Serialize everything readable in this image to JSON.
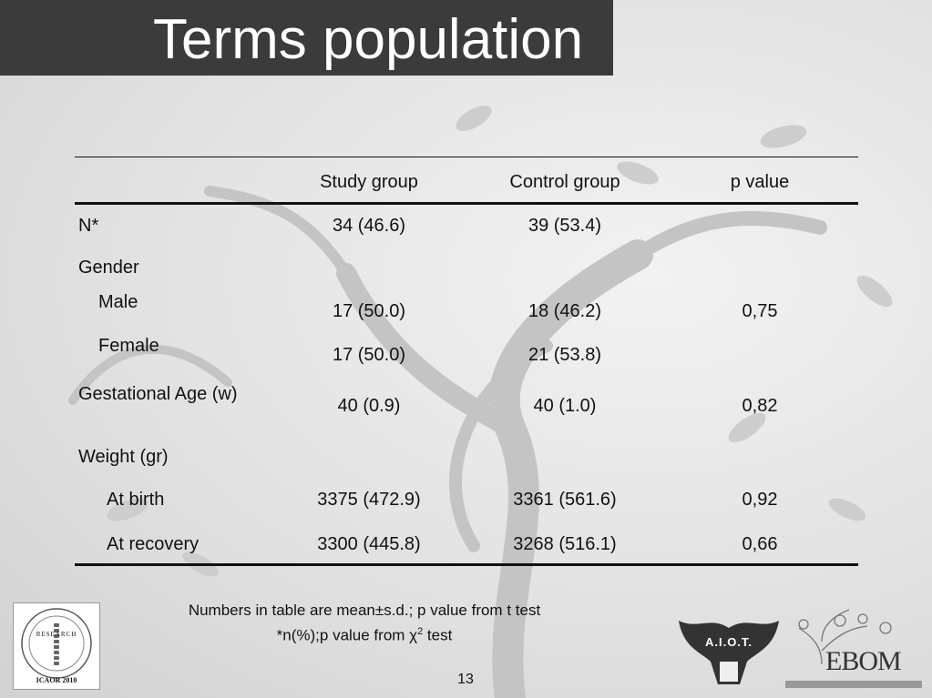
{
  "title": "Terms population",
  "table": {
    "headers": {
      "study": "Study group",
      "control": "Control group",
      "p": "p value"
    },
    "n": {
      "label": "N*",
      "study": "34 (46.6)",
      "control": "39 (53.4)"
    },
    "gender": {
      "label": "Gender",
      "male": {
        "label": "Male",
        "study": "17 (50.0)",
        "control": "18 (46.2)"
      },
      "female": {
        "label": "Female",
        "study": "17 (50.0)",
        "control": "21 (53.8)"
      },
      "p": "0,75"
    },
    "gestational": {
      "label": "Gestational Age (w)",
      "study": "40 (0.9)",
      "control": "40 (1.0)",
      "p": "0,82"
    },
    "weight": {
      "label": "Weight (gr)",
      "birth": {
        "label": "At birth",
        "study": "3375 (472.9)",
        "control": "3361 (561.6)",
        "p": "0,92"
      },
      "recovery": {
        "label": "At recovery",
        "study": "3300 (445.8)",
        "control": "3268 (516.1)",
        "p": "0,66"
      }
    }
  },
  "notes": {
    "line1": "Numbers in table are mean±s.d.; p value from t test",
    "line2_pre": "*n(%);p value from χ",
    "line2_sup": "2",
    "line2_post": " test"
  },
  "page_number": "13",
  "logos": {
    "icaor": {
      "year": "ICAOR 2010",
      "word": "RESEARCH"
    },
    "aiot": {
      "text": "A.I.O.T."
    },
    "ebom": {
      "text": "EBOM"
    }
  }
}
